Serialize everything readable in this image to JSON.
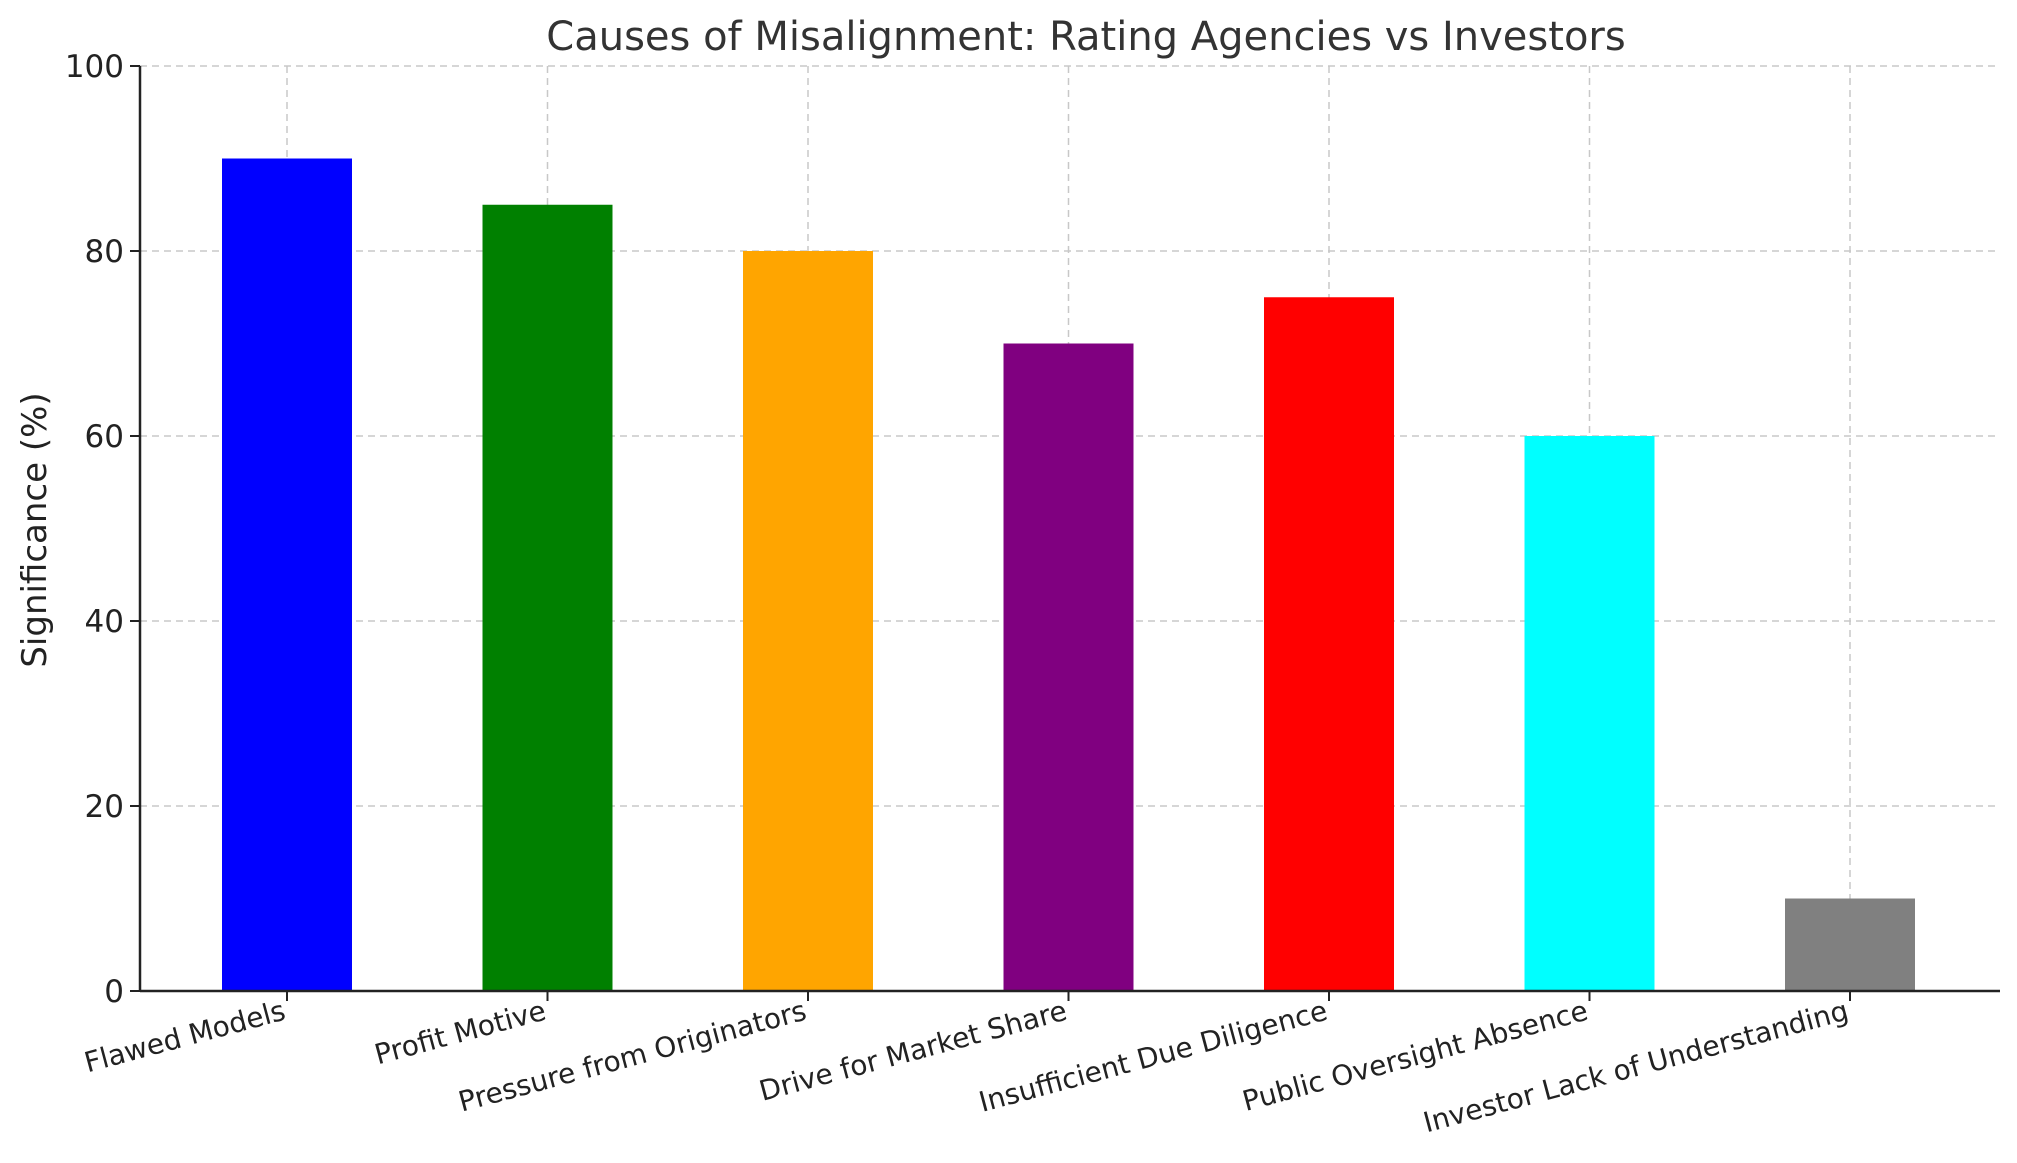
{
  "chart_data": {
    "type": "bar",
    "title": "Causes of Misalignment: Rating Agencies vs Investors",
    "xlabel": "",
    "ylabel": "Significance (%)",
    "ylim": [
      0,
      100
    ],
    "yticks": [
      "0",
      "20",
      "40",
      "60",
      "80",
      "100"
    ],
    "categories": [
      "Flawed Models",
      "Profit Motive",
      "Pressure from Originators",
      "Drive for Market Share",
      "Insufficient Due Diligence",
      "Public Oversight Absence",
      "Investor Lack of Understanding"
    ],
    "values": [
      90,
      85,
      80,
      70,
      75,
      60,
      10
    ],
    "colors": [
      "#0000ff",
      "#008000",
      "#ffa500",
      "#800080",
      "#ff0000",
      "#00ffff",
      "#808080"
    ],
    "grid": true,
    "legend": "none"
  }
}
